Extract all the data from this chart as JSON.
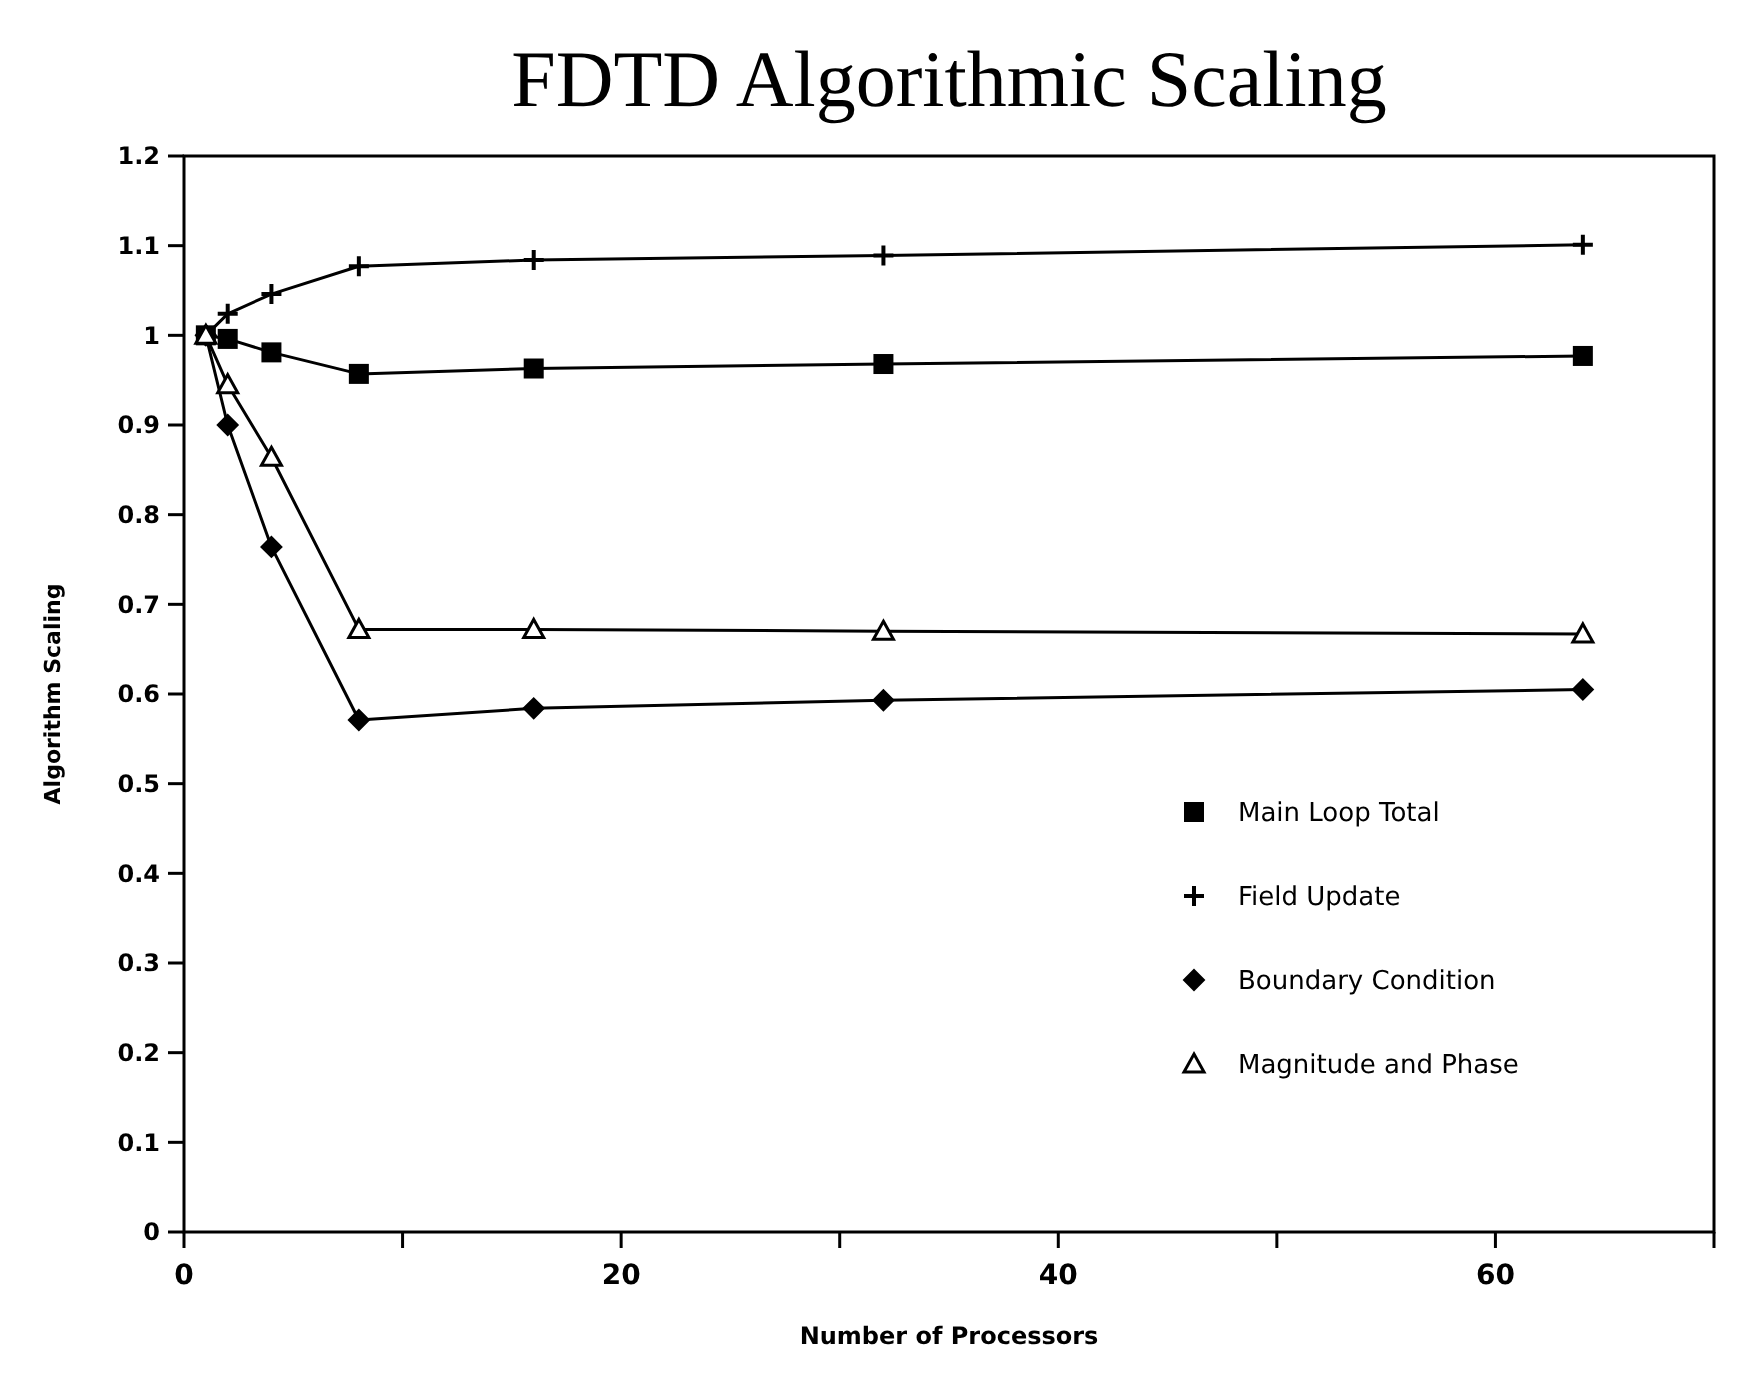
{
  "chart_data": {
    "type": "line",
    "title": "FDTD Algorithmic Scaling",
    "xlabel": "Number of Processors",
    "ylabel": "Algorithm Scaling",
    "x": [
      1,
      2,
      4,
      8,
      16,
      32,
      64
    ],
    "series": [
      {
        "name": "Main Loop Total",
        "color": "#000000",
        "marker": "square",
        "values": [
          1.0,
          0.996,
          0.981,
          0.957,
          0.963,
          0.968,
          0.977
        ]
      },
      {
        "name": "Field Update",
        "color": "#000000",
        "marker": "cross",
        "values": [
          1.0,
          1.024,
          1.046,
          1.077,
          1.084,
          1.089,
          1.101
        ]
      },
      {
        "name": "Boundary Condition",
        "color": "#000000",
        "marker": "diamond",
        "values": [
          1.0,
          0.9,
          0.764,
          0.571,
          0.584,
          0.593,
          0.605
        ]
      },
      {
        "name": "Magnitude and Phase",
        "color": "#000000",
        "marker": "triangle",
        "values": [
          1.0,
          0.945,
          0.864,
          0.672,
          0.672,
          0.67,
          0.667
        ]
      }
    ],
    "xlim": [
      0,
      70
    ],
    "xticks": [
      0,
      {
        "value": 10,
        "label": null
      },
      20,
      {
        "value": 30,
        "label": null
      },
      40,
      {
        "value": 50,
        "label": null
      },
      60,
      {
        "value": 70,
        "label": null
      }
    ],
    "ylim": [
      0,
      1.2
    ],
    "yticks": [
      0,
      0.1,
      0.2,
      0.3,
      0.4,
      0.5,
      0.6,
      0.7,
      0.8,
      0.9,
      1,
      1.1,
      1.2
    ],
    "grid": false,
    "legend": "bottom right",
    "line_style": "solid"
  }
}
